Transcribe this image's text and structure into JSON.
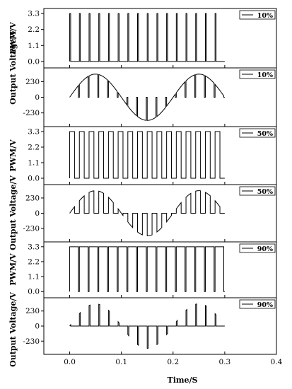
{
  "chart_data": {
    "type": "line",
    "xlabel": "Time/S",
    "xlim": [
      -0.05,
      0.4
    ],
    "xticks": [
      0.0,
      0.1,
      0.2,
      0.3,
      0.4
    ],
    "xtick_labels": [
      "0.0",
      "0.1",
      "0.2",
      "0.3",
      "0.4"
    ],
    "time_span": [
      0.0,
      0.3
    ],
    "pwm_pulse_count": 16,
    "output_period_s": 0.2,
    "grid": false,
    "legend_position": "top-right",
    "panels": [
      {
        "kind": "pwm",
        "ylabel": "PWM/V",
        "ylim": [
          -0.3,
          3.5
        ],
        "yticks": [
          0.0,
          1.1,
          2.2,
          3.3
        ],
        "ytick_labels": [
          "0.0",
          "1.1",
          "2.2",
          "3.3"
        ],
        "legend": "10%",
        "high_level": 3.3,
        "low_level": 0.0,
        "duty_cycle": 0.1
      },
      {
        "kind": "output",
        "ylabel": "Output Voltage/V",
        "ylim": [
          -400,
          400
        ],
        "yticks": [
          -230,
          0,
          230
        ],
        "ytick_labels": [
          "-230",
          "0",
          "230"
        ],
        "legend": "10%",
        "amplitude": 340,
        "duty_cycle": 0.1,
        "envelope_visible": false
      },
      {
        "kind": "pwm",
        "ylabel": "PWM/V",
        "ylim": [
          -0.3,
          3.5
        ],
        "yticks": [
          0.0,
          1.1,
          2.2,
          3.3
        ],
        "ytick_labels": [
          "0.0",
          "1.1",
          "2.2",
          "3.3"
        ],
        "legend": "50%",
        "high_level": 3.3,
        "low_level": 0.0,
        "duty_cycle": 0.5
      },
      {
        "kind": "output",
        "ylabel": "Output Voltage/V",
        "ylim": [
          -400,
          400
        ],
        "yticks": [
          -230,
          0,
          230
        ],
        "ytick_labels": [
          "-230",
          "0",
          "230"
        ],
        "legend": "50%",
        "amplitude": 340,
        "duty_cycle": 0.5,
        "envelope_visible": true
      },
      {
        "kind": "pwm",
        "ylabel": "PWM/V",
        "ylim": [
          -0.3,
          3.5
        ],
        "yticks": [
          0.0,
          1.1,
          2.2,
          3.3
        ],
        "ytick_labels": [
          "0.0",
          "1.1",
          "2.2",
          "3.3"
        ],
        "legend": "90%",
        "high_level": 3.3,
        "low_level": 0.0,
        "duty_cycle": 0.9
      },
      {
        "kind": "output",
        "ylabel": "Output Voltage/V",
        "ylim": [
          -400,
          400
        ],
        "yticks": [
          -230,
          0,
          230
        ],
        "ytick_labels": [
          "-230",
          "0",
          "230"
        ],
        "legend": "90%",
        "amplitude": 340,
        "duty_cycle": 0.9,
        "envelope_visible": true
      }
    ]
  }
}
